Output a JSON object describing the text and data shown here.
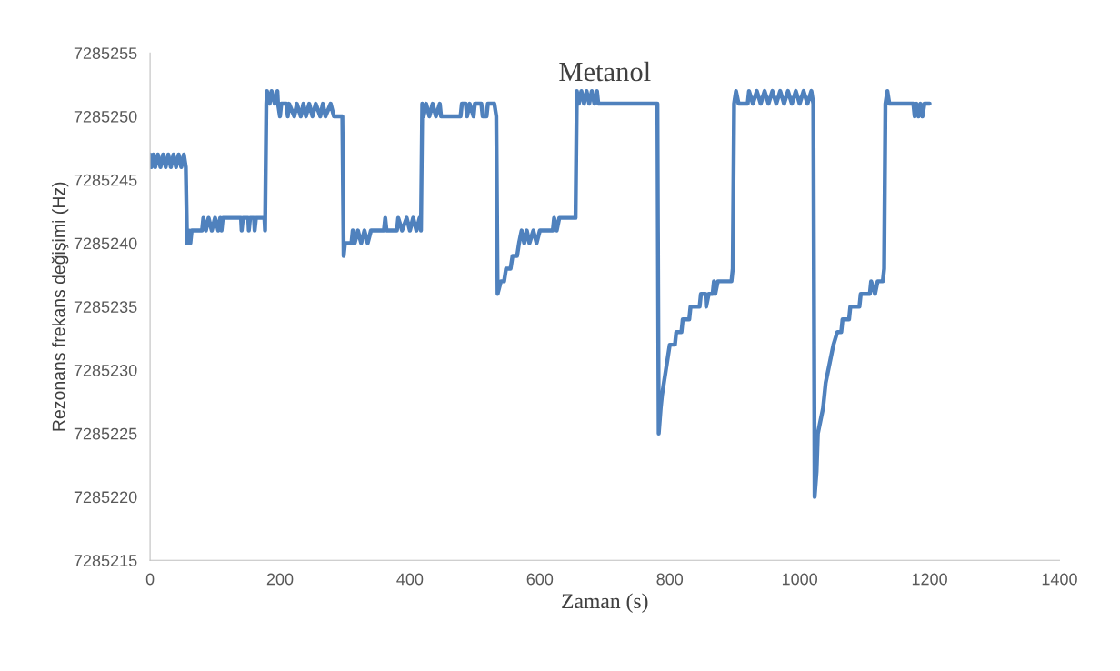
{
  "chart_data": {
    "type": "line",
    "title": "Metanol",
    "xlabel": "Zaman (s)",
    "ylabel": "Rezonans frekans değişimi (Hz)",
    "xlim": [
      0,
      1400
    ],
    "xticks": [
      0,
      200,
      400,
      600,
      800,
      1000,
      1200,
      1400
    ],
    "ylim": [
      7285215,
      7285255
    ],
    "yticks": [
      7285215,
      7285220,
      7285225,
      7285230,
      7285235,
      7285240,
      7285245,
      7285250,
      7285255
    ],
    "grid": false,
    "legend": false,
    "marker": "none",
    "line_style": "solid",
    "series": [
      {
        "color": "#4f81bd",
        "x": [
          0,
          2,
          5,
          8,
          12,
          16,
          20,
          24,
          28,
          32,
          36,
          40,
          44,
          48,
          52,
          55,
          57,
          60,
          62,
          64,
          80,
          82,
          86,
          90,
          95,
          100,
          105,
          108,
          110,
          112,
          140,
          141,
          143,
          151,
          152,
          154,
          160,
          161,
          163,
          176,
          177,
          179,
          180,
          184,
          187,
          192,
          196,
          197,
          200,
          202,
          210,
          212,
          214,
          222,
          226,
          232,
          236,
          240,
          245,
          250,
          255,
          262,
          266,
          270,
          278,
          283,
          296,
          298,
          300,
          310,
          312,
          315,
          320,
          325,
          330,
          335,
          340,
          360,
          362,
          364,
          380,
          382,
          388,
          395,
          400,
          405,
          410,
          415,
          417,
          419,
          421,
          425,
          430,
          435,
          440,
          446,
          448,
          478,
          480,
          486,
          488,
          492,
          498,
          500,
          510,
          512,
          518,
          520,
          530,
          533,
          535,
          540,
          545,
          548,
          555,
          558,
          565,
          568,
          572,
          576,
          580,
          584,
          590,
          595,
          600,
          620,
          622,
          626,
          630,
          655,
          657,
          660,
          664,
          668,
          672,
          676,
          680,
          684,
          688,
          690,
          781,
          783,
          786,
          788,
          791,
          794,
          797,
          800,
          808,
          810,
          818,
          820,
          830,
          832,
          846,
          848,
          855,
          856,
          860,
          866,
          868,
          870,
          874,
          895,
          897,
          899,
          902,
          906,
          920,
          922,
          928,
          934,
          940,
          946,
          952,
          958,
          964,
          970,
          976,
          982,
          988,
          994,
          1000,
          1006,
          1012,
          1018,
          1021,
          1023,
          1026,
          1028,
          1032,
          1036,
          1040,
          1044,
          1048,
          1052,
          1058,
          1064,
          1066,
          1076,
          1078,
          1092,
          1094,
          1108,
          1110,
          1116,
          1120,
          1128,
          1130,
          1132,
          1135,
          1138,
          1175,
          1177,
          1180,
          1183,
          1186,
          1189,
          1192,
          1200
        ],
        "values": [
          7285247,
          7285246,
          7285247,
          7285246,
          7285247,
          7285246,
          7285247,
          7285246,
          7285247,
          7285246,
          7285247,
          7285246,
          7285247,
          7285246,
          7285247,
          7285246,
          7285240,
          7285241,
          7285240,
          7285241,
          7285241,
          7285242,
          7285241,
          7285242,
          7285241,
          7285242,
          7285241,
          7285242,
          7285241,
          7285242,
          7285242,
          7285241,
          7285242,
          7285242,
          7285241,
          7285242,
          7285242,
          7285241,
          7285242,
          7285242,
          7285241,
          7285251,
          7285252,
          7285251,
          7285252,
          7285251,
          7285252,
          7285251,
          7285250,
          7285251,
          7285251,
          7285250,
          7285251,
          7285250,
          7285251,
          7285250,
          7285251,
          7285250,
          7285251,
          7285250,
          7285251,
          7285250,
          7285251,
          7285250,
          7285251,
          7285250,
          7285250,
          7285239,
          7285240,
          7285240,
          7285241,
          7285240,
          7285241,
          7285240,
          7285241,
          7285240,
          7285241,
          7285241,
          7285242,
          7285241,
          7285241,
          7285242,
          7285241,
          7285242,
          7285241,
          7285242,
          7285241,
          7285242,
          7285241,
          7285251,
          7285250,
          7285251,
          7285250,
          7285251,
          7285250,
          7285251,
          7285250,
          7285250,
          7285251,
          7285251,
          7285250,
          7285251,
          7285250,
          7285251,
          7285251,
          7285250,
          7285250,
          7285251,
          7285251,
          7285250,
          7285236,
          7285237,
          7285237,
          7285238,
          7285238,
          7285239,
          7285239,
          7285240,
          7285241,
          7285240,
          7285241,
          7285240,
          7285241,
          7285240,
          7285241,
          7285241,
          7285242,
          7285241,
          7285242,
          7285242,
          7285252,
          7285251,
          7285252,
          7285251,
          7285252,
          7285251,
          7285252,
          7285251,
          7285252,
          7285251,
          7285251,
          7285225,
          7285227,
          7285228,
          7285229,
          7285230,
          7285231,
          7285232,
          7285232,
          7285233,
          7285233,
          7285234,
          7285234,
          7285235,
          7285235,
          7285236,
          7285236,
          7285235,
          7285236,
          7285236,
          7285237,
          7285236,
          7285237,
          7285237,
          7285238,
          7285251,
          7285252,
          7285251,
          7285251,
          7285252,
          7285251,
          7285252,
          7285251,
          7285252,
          7285251,
          7285252,
          7285251,
          7285252,
          7285251,
          7285252,
          7285251,
          7285252,
          7285251,
          7285252,
          7285251,
          7285252,
          7285251,
          7285220,
          7285222,
          7285225,
          7285226,
          7285227,
          7285229,
          7285230,
          7285231,
          7285232,
          7285233,
          7285233,
          7285234,
          7285234,
          7285235,
          7285235,
          7285236,
          7285236,
          7285237,
          7285236,
          7285237,
          7285237,
          7285238,
          7285251,
          7285252,
          7285251,
          7285251,
          7285250,
          7285251,
          7285250,
          7285251,
          7285250,
          7285251,
          7285251
        ]
      }
    ]
  }
}
